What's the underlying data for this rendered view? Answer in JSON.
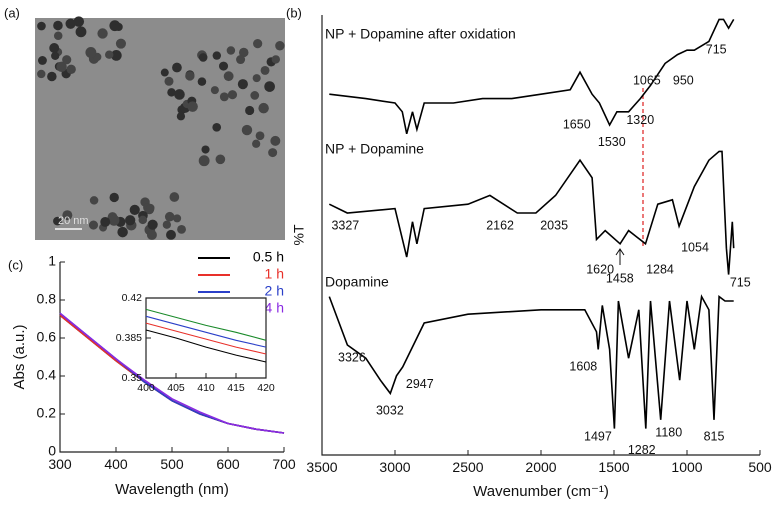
{
  "panel_a": {
    "label": "(a)",
    "scale_bar": "20 nm"
  },
  "chart_data": [
    {
      "type": "line",
      "panel_label": "(b)",
      "x_label": "Wavenumber (cm⁻¹)",
      "y_label": "%T",
      "xlim": [
        3500,
        500
      ],
      "xticks": [
        3500,
        3000,
        2500,
        2000,
        1500,
        1000,
        500
      ],
      "ylim": [
        0,
        100
      ],
      "series": [
        {
          "name": "NP + Dopamine after oxidation",
          "color": "#000000",
          "x": [
            3450,
            3200,
            3000,
            2950,
            2920,
            2880,
            2850,
            2800,
            2600,
            2400,
            2200,
            2000,
            1800,
            1733,
            1650,
            1600,
            1530,
            1480,
            1400,
            1320,
            1250,
            1150,
            1065,
            1000,
            950,
            850,
            780,
            750,
            715,
            680
          ],
          "values": [
            82,
            81,
            80,
            78,
            73,
            78,
            74,
            80,
            80,
            81,
            81,
            82,
            83,
            87,
            82,
            80,
            75,
            78,
            78,
            81,
            84,
            89,
            91,
            92,
            92,
            94,
            99,
            99,
            97,
            99
          ]
        },
        {
          "name": "NP + Dopamine",
          "color": "#000000",
          "x": [
            3450,
            3327,
            3000,
            2920,
            2880,
            2850,
            2800,
            2500,
            2350,
            2162,
            2035,
            1900,
            1733,
            1650,
            1620,
            1560,
            1458,
            1400,
            1284,
            1200,
            1100,
            1054,
            950,
            850,
            780,
            760,
            730,
            715,
            690,
            680
          ],
          "values": [
            57,
            55,
            56,
            45,
            53,
            48,
            56,
            57,
            59,
            55,
            55,
            59,
            67,
            63,
            49,
            51,
            48,
            51,
            48,
            57,
            58,
            52,
            61,
            67,
            69,
            69,
            47,
            41,
            53,
            47
          ]
        },
        {
          "name": "Dopamine",
          "color": "#000000",
          "x": [
            3450,
            3326,
            3200,
            3100,
            3032,
            2990,
            2947,
            2800,
            2500,
            2000,
            1700,
            1620,
            1608,
            1580,
            1530,
            1497,
            1470,
            1400,
            1330,
            1282,
            1250,
            1180,
            1120,
            1050,
            1000,
            950,
            900,
            850,
            815,
            780,
            740,
            680
          ],
          "values": [
            36,
            25,
            22,
            17,
            14,
            18,
            20,
            30,
            32,
            33,
            33,
            28,
            24,
            34,
            24,
            6,
            35,
            22,
            33,
            6,
            35,
            8,
            35,
            17,
            35,
            24,
            36,
            33,
            8,
            36,
            35,
            35
          ]
        }
      ],
      "annotations": [
        {
          "text": "715",
          "x": 800,
          "y": 92
        },
        {
          "text": "950",
          "x": 1025,
          "y": 85
        },
        {
          "text": "1065",
          "x": 1275,
          "y": 85
        },
        {
          "text": "1320",
          "x": 1320,
          "y": 76
        },
        {
          "text": "1650",
          "x": 1755,
          "y": 75
        },
        {
          "text": "1530",
          "x": 1515,
          "y": 71
        },
        {
          "text": "3327",
          "x": 3340,
          "y": 52
        },
        {
          "text": "2162",
          "x": 2280,
          "y": 52
        },
        {
          "text": "2035",
          "x": 1910,
          "y": 52
        },
        {
          "text": "1620",
          "x": 1595,
          "y": 42
        },
        {
          "text": "1458",
          "x": 1460,
          "y": 40
        },
        {
          "text": "1284",
          "x": 1185,
          "y": 42
        },
        {
          "text": "1054",
          "x": 945,
          "y": 47
        },
        {
          "text": "715",
          "x": 635,
          "y": 39
        },
        {
          "text": "3326",
          "x": 3295,
          "y": 22
        },
        {
          "text": "3032",
          "x": 3035,
          "y": 10
        },
        {
          "text": "2947",
          "x": 2830,
          "y": 16
        },
        {
          "text": "1608",
          "x": 1710,
          "y": 20
        },
        {
          "text": "1497",
          "x": 1610,
          "y": 4
        },
        {
          "text": "1282",
          "x": 1310,
          "y": 1
        },
        {
          "text": "1180",
          "x": 1125,
          "y": 5
        },
        {
          "text": "815",
          "x": 815,
          "y": 4
        }
      ]
    },
    {
      "type": "line",
      "panel_label": "(c)",
      "x_label": "Wavelength (nm)",
      "y_label": "Abs (a.u.)",
      "xlim": [
        300,
        700
      ],
      "xticks": [
        300,
        400,
        500,
        600,
        700
      ],
      "ylim": [
        0,
        1
      ],
      "yticks": [
        0,
        0.2,
        0.4,
        0.6,
        0.8,
        1
      ],
      "x": [
        300,
        350,
        400,
        450,
        500,
        550,
        600,
        650,
        700
      ],
      "series": [
        {
          "name": "0.5 h",
          "color": "#000000",
          "values": [
            0.72,
            0.6,
            0.48,
            0.37,
            0.27,
            0.2,
            0.15,
            0.12,
            0.1
          ]
        },
        {
          "name": "1 h",
          "color": "#e8302a",
          "values": [
            0.72,
            0.6,
            0.48,
            0.37,
            0.27,
            0.2,
            0.15,
            0.12,
            0.1
          ]
        },
        {
          "name": "2 h",
          "color": "#2a3fc8",
          "values": [
            0.73,
            0.61,
            0.49,
            0.37,
            0.27,
            0.2,
            0.15,
            0.12,
            0.1
          ]
        },
        {
          "name": "4 h",
          "color": "#8a2be2",
          "values": [
            0.73,
            0.61,
            0.49,
            0.38,
            0.28,
            0.21,
            0.15,
            0.12,
            0.1
          ]
        }
      ],
      "inset": {
        "xlim": [
          400,
          420
        ],
        "xticks": [
          400,
          405,
          410,
          415,
          420
        ],
        "ylim": [
          0.35,
          0.42
        ],
        "yticks": [
          0.35,
          0.385,
          0.42
        ],
        "x": [
          400,
          405,
          410,
          415,
          420
        ],
        "series": [
          {
            "color": "#1a8a2a",
            "values": [
              0.41,
              0.403,
              0.396,
              0.39,
              0.383
            ]
          },
          {
            "color": "#2a3fc8",
            "values": [
              0.404,
              0.397,
              0.39,
              0.383,
              0.377
            ]
          },
          {
            "color": "#e8302a",
            "values": [
              0.398,
              0.391,
              0.384,
              0.377,
              0.371
            ]
          },
          {
            "color": "#000000",
            "values": [
              0.392,
              0.385,
              0.377,
              0.37,
              0.364
            ]
          }
        ]
      }
    }
  ]
}
